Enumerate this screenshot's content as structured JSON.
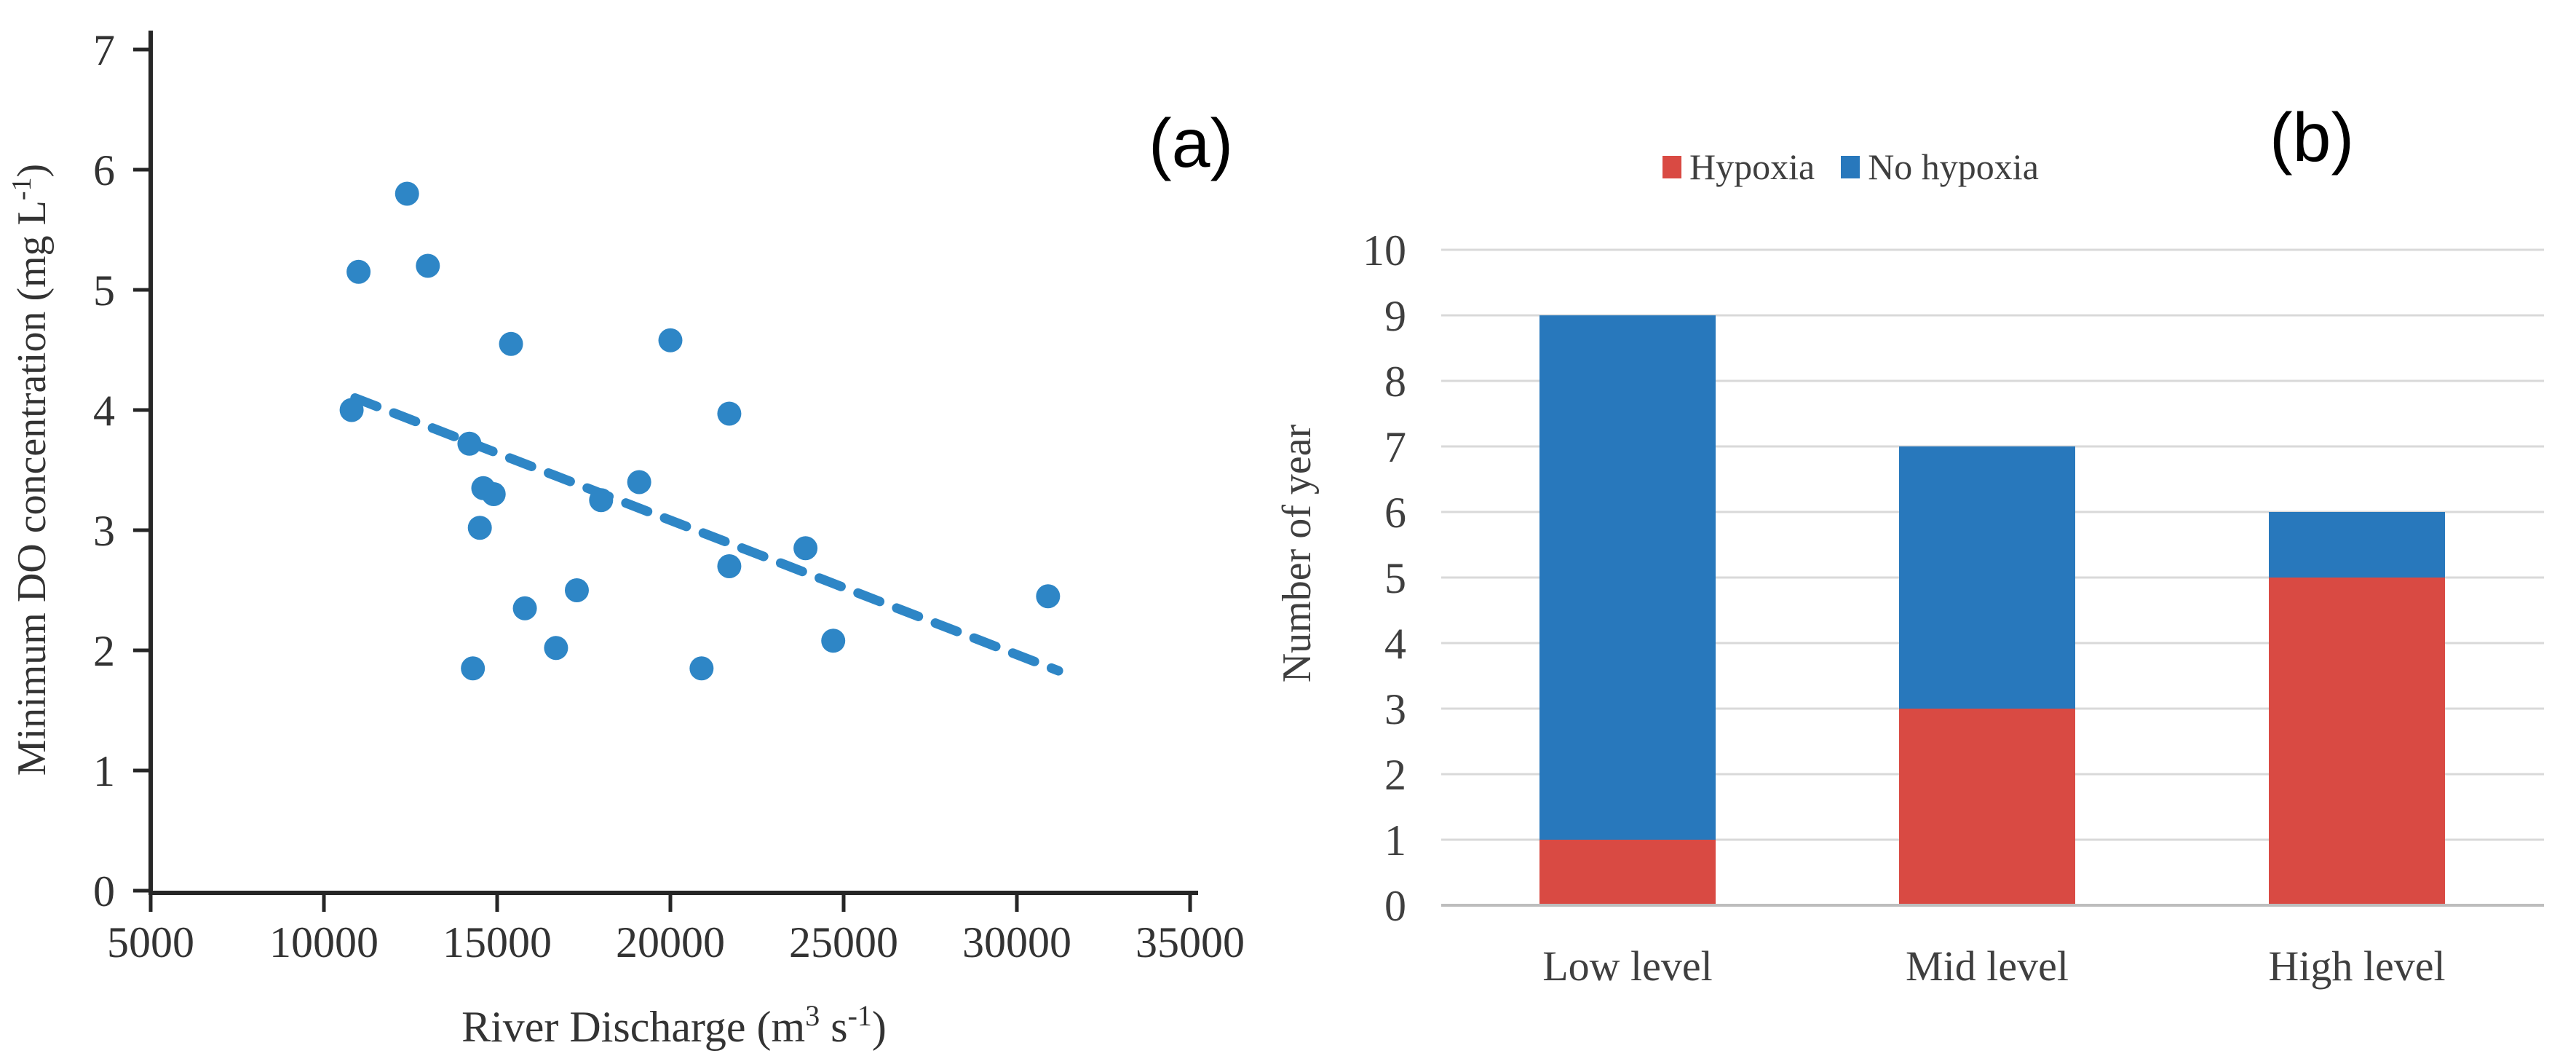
{
  "figure_title": "",
  "panels": {
    "a": "(a)",
    "b": "(b)"
  },
  "colors": {
    "scatter_marker": "#2e86c6",
    "trend_line": "#2e86c6",
    "bar_red": "#d94a43",
    "bar_blue": "#2878bc",
    "gridline": "#d9d9d9",
    "baseline": "#bdbdbd",
    "axis": "#262626",
    "tick_text": "#333333",
    "label_text": "#3f3f3f"
  },
  "chart_data": [
    {
      "id": "scatter-a",
      "type": "scatter",
      "panel_label": "(a)",
      "xlabel": "River Discharge (m3 s-1)",
      "xlabel_parts": [
        {
          "t": "River Discharge (m"
        },
        {
          "t": "3",
          "sup": true
        },
        {
          "t": " s"
        },
        {
          "t": "-1",
          "sup": true
        },
        {
          "t": ")"
        }
      ],
      "ylabel": "Minimum DO concentration (mg L-1)",
      "ylabel_parts": [
        {
          "t": "Minimum DO concentration (mg L"
        },
        {
          "t": "-1",
          "sup": true
        },
        {
          "t": ")"
        }
      ],
      "xlim": [
        5000,
        35000
      ],
      "ylim": [
        0,
        7
      ],
      "x_ticks": [
        5000,
        10000,
        15000,
        20000,
        25000,
        30000,
        35000
      ],
      "x_tick_labels": [
        "5000",
        "10000",
        "15000",
        "20000",
        "25000",
        "30000",
        "35000"
      ],
      "y_ticks": [
        0,
        1,
        2,
        3,
        4,
        5,
        6,
        7
      ],
      "y_tick_labels": [
        "0",
        "1",
        "2",
        "3",
        "4",
        "5",
        "6",
        "7"
      ],
      "grid": false,
      "points": [
        [
          10800,
          4.0
        ],
        [
          11000,
          5.15
        ],
        [
          12400,
          5.8
        ],
        [
          13000,
          5.2
        ],
        [
          14200,
          3.72
        ],
        [
          14300,
          1.85
        ],
        [
          14500,
          3.02
        ],
        [
          14600,
          3.35
        ],
        [
          14900,
          3.3
        ],
        [
          15400,
          4.55
        ],
        [
          15800,
          2.35
        ],
        [
          16700,
          2.02
        ],
        [
          17300,
          2.5
        ],
        [
          18000,
          3.25
        ],
        [
          19100,
          3.4
        ],
        [
          20000,
          4.58
        ],
        [
          20900,
          1.85
        ],
        [
          21700,
          3.97
        ],
        [
          21700,
          2.7
        ],
        [
          23900,
          2.85
        ],
        [
          24700,
          2.08
        ],
        [
          30900,
          2.45
        ]
      ],
      "trend": {
        "style": "dashed",
        "x1": 10900,
        "y1": 4.1,
        "x2": 31200,
        "y2": 1.83
      }
    },
    {
      "id": "stacked-bar-b",
      "type": "bar",
      "panel_label": "(b)",
      "stacked": true,
      "ylabel": "Number of year",
      "categories": [
        "Low level",
        "Mid level",
        "High level"
      ],
      "series": [
        {
          "name": "Hypoxia",
          "color": "#d94a43",
          "values": [
            1,
            3,
            5
          ]
        },
        {
          "name": "No hypoxia",
          "color": "#2878bc",
          "values": [
            8,
            4,
            1
          ]
        }
      ],
      "totals": [
        9,
        7,
        6
      ],
      "ylim": [
        0,
        10
      ],
      "y_ticks": [
        0,
        1,
        2,
        3,
        4,
        5,
        6,
        7,
        8,
        9,
        10
      ],
      "y_tick_labels": [
        "0",
        "1",
        "2",
        "3",
        "4",
        "5",
        "6",
        "7",
        "8",
        "9",
        "10"
      ],
      "grid": true,
      "legend_position": "top"
    }
  ]
}
